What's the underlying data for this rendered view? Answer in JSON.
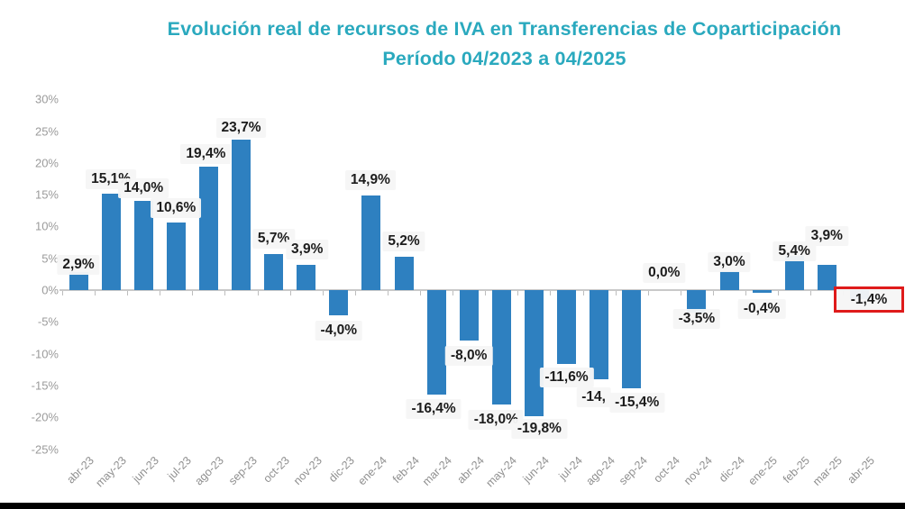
{
  "title": {
    "line1": "Evolución real de recursos de IVA en Transferencias de Coparticipación",
    "line2": "Período 04/2023 a 04/2025"
  },
  "chart_data": {
    "type": "bar",
    "title": "Evolución real de recursos de IVA en Transferencias de Coparticipación",
    "subtitle": "Período 04/2023 a 04/2025",
    "xlabel": "",
    "ylabel": "",
    "categories": [
      "abr-23",
      "may-23",
      "jun-23",
      "jul-23",
      "ago-23",
      "sep-23",
      "oct-23",
      "nov-23",
      "dic-23",
      "ene-24",
      "feb-24",
      "mar-24",
      "abr-24",
      "may-24",
      "jun-24",
      "jul-24",
      "ago-24",
      "sep-24",
      "oct-24",
      "nov-24",
      "dic-24",
      "ene-25",
      "feb-25",
      "mar-25",
      "abr-25"
    ],
    "values": [
      2.9,
      15.1,
      14.0,
      10.6,
      19.4,
      23.7,
      5.7,
      3.9,
      -4.0,
      14.9,
      5.2,
      -16.4,
      -8.0,
      -18.0,
      -19.8,
      -11.6,
      -14.0,
      -15.4,
      0.0,
      -3.5,
      3.0,
      -0.4,
      5.4,
      3.9,
      -1.4
    ],
    "labels": [
      "2,9%",
      "15,1%",
      "14,0%",
      "10,6%",
      "19,4%",
      "23,7%",
      "5,7%",
      "3,9%",
      "-4,0%",
      "14,9%",
      "5,2%",
      "-16,4%",
      "-8,0%",
      "-18,0%",
      "-19,8%",
      "-11,6%",
      "-14,",
      "-15,4%",
      "0,0%",
      "-3,5%",
      "3,0%",
      "-0,4%",
      "5,4%",
      "3,9%",
      "-1,4%"
    ],
    "y_ticks": [
      "30%",
      "25%",
      "20%",
      "15%",
      "10%",
      "5%",
      "0%",
      "-5%",
      "-10%",
      "-15%",
      "-20%",
      "-25%"
    ],
    "y_tick_values": [
      30,
      25,
      20,
      15,
      10,
      5,
      0,
      -5,
      -10,
      -15,
      -20,
      -25
    ],
    "ylim": [
      -25,
      30
    ],
    "grid": false,
    "legend": null,
    "bar_color": "#2e80c0",
    "highlight": {
      "index": 24,
      "label": "-1,4%",
      "box_color": "#df1b1b"
    }
  },
  "colors": {
    "title": "#2aa9be",
    "bar": "#2e80c0",
    "highlight_box": "#df1b1b",
    "axis": "#c9c9c9",
    "axis_text": "#9b9b9b",
    "value_text": "#1c1c1c",
    "letterbox": "#000000"
  }
}
